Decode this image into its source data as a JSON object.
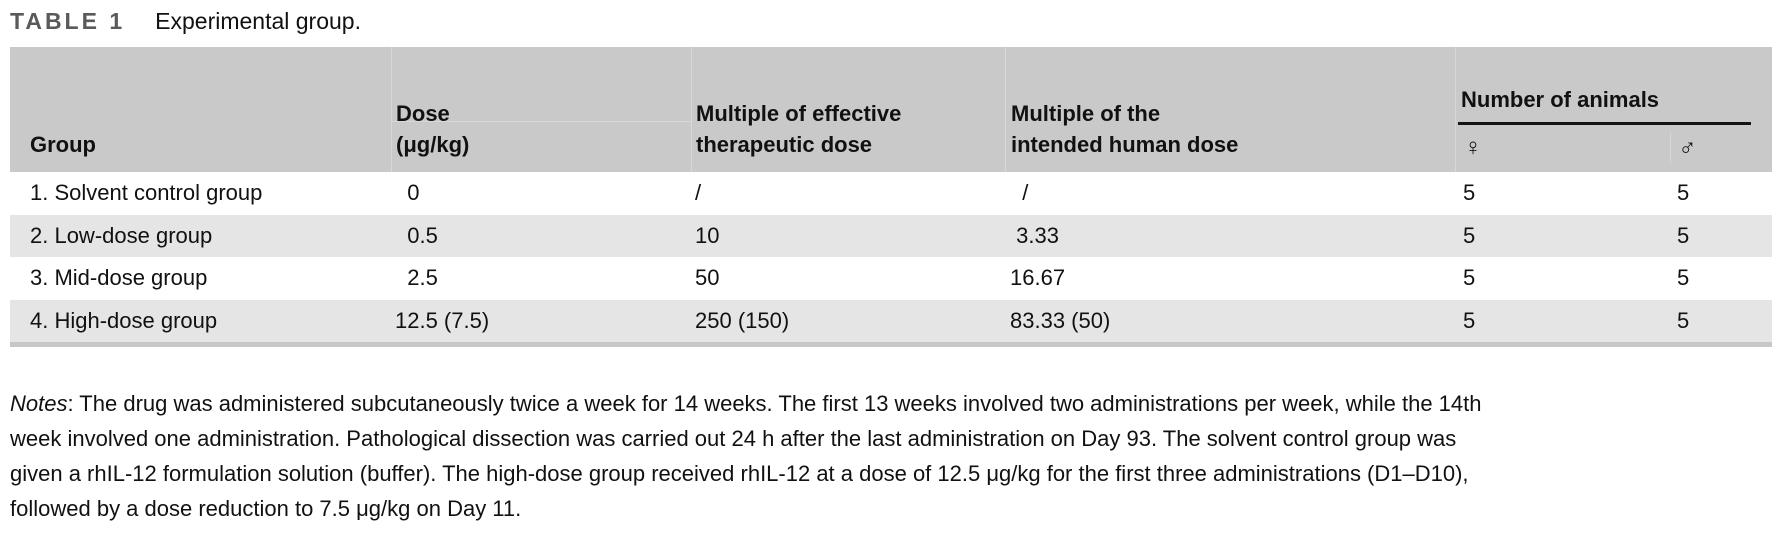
{
  "caption": {
    "tag": "TABLE 1",
    "text": "Experimental group."
  },
  "table": {
    "header": {
      "group": "Group",
      "dose_line1": "Dose",
      "dose_line2": "(μg/kg)",
      "mult_effective_line1": "Multiple of effective",
      "mult_effective_line2": "therapeutic dose",
      "mult_human_line1": "Multiple of the",
      "mult_human_line2": "intended human dose",
      "number_of_animals": "Number of animals",
      "female_symbol": "♀",
      "male_symbol": "♂"
    },
    "rows": [
      {
        "group": "1. Solvent control group",
        "dose": "  0",
        "mult_effective": "/",
        "mult_human": "  /",
        "female": "5",
        "male": "5"
      },
      {
        "group": "2. Low-dose group",
        "dose": "  0.5",
        "mult_effective": "10",
        "mult_human": " 3.33",
        "female": "5",
        "male": "5"
      },
      {
        "group": "3. Mid-dose group",
        "dose": "  2.5",
        "mult_effective": "50",
        "mult_human": "16.67",
        "female": "5",
        "male": "5"
      },
      {
        "group": "4. High-dose group",
        "dose": "12.5 (7.5)",
        "mult_effective": "250 (150)",
        "mult_human": "83.33 (50)",
        "female": "5",
        "male": "5"
      }
    ]
  },
  "notes": {
    "prefix": "Notes",
    "line1_rest": ": The drug was administered subcutaneously twice a week for 14 weeks. The first 13 weeks involved two administrations per week, while the 14th",
    "line2": "week involved one administration. Pathological dissection was carried out 24 h after the last administration on Day 93. The solvent control group was",
    "line3": "given a rhIL-12 formulation solution (buffer). The high-dose group received rhIL-12 at a dose of 12.5 μg/kg for the first three administrations (D1–D10),",
    "line4": "followed by a dose reduction to 7.5 μg/kg on Day 11."
  },
  "colors": {
    "header_background": "#c9c9c9",
    "alt_row_background": "#e5e5e5",
    "caption_tag_gray": "#5a5a5a",
    "rule_black": "#141414"
  }
}
